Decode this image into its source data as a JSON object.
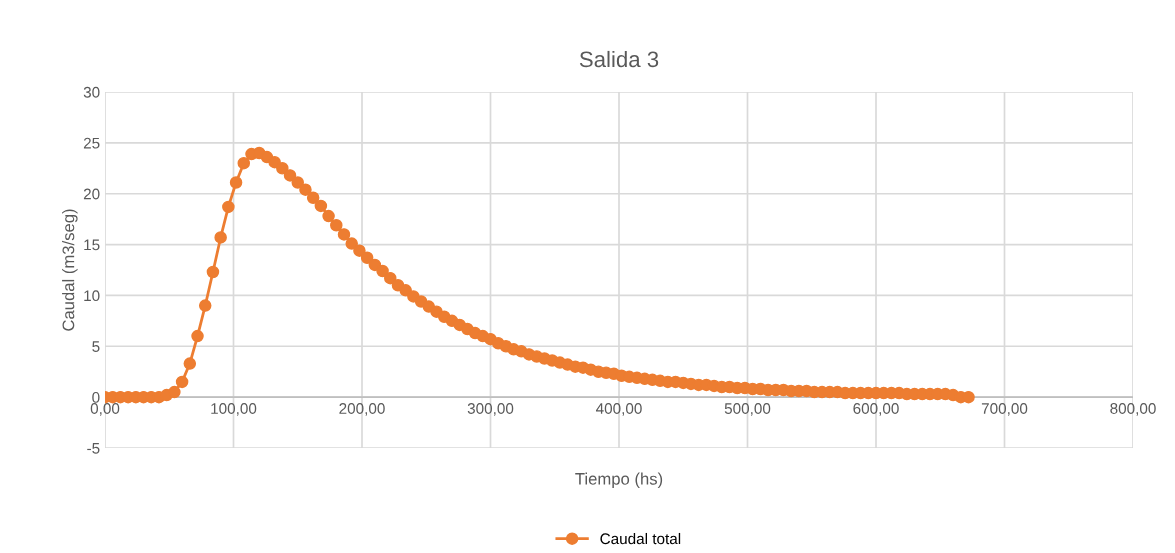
{
  "chart_data": {
    "type": "line",
    "title": "Salida 3",
    "xlabel": "Tiempo (hs)",
    "ylabel": "Caudal (m3/seg)",
    "x": [
      0,
      6,
      12,
      18,
      24,
      30,
      36,
      42,
      48,
      54,
      60,
      66,
      72,
      78,
      84,
      90,
      96,
      102,
      108,
      114,
      120,
      126,
      132,
      138,
      144,
      150,
      156,
      162,
      168,
      174,
      180,
      186,
      192,
      198,
      204,
      210,
      216,
      222,
      228,
      234,
      240,
      246,
      252,
      258,
      264,
      270,
      276,
      282,
      288,
      294,
      300,
      306,
      312,
      318,
      324,
      330,
      336,
      342,
      348,
      354,
      360,
      366,
      372,
      378,
      384,
      390,
      396,
      402,
      408,
      414,
      420,
      426,
      432,
      438,
      444,
      450,
      456,
      462,
      468,
      474,
      480,
      486,
      492,
      498,
      504,
      510,
      516,
      522,
      528,
      534,
      540,
      546,
      552,
      558,
      564,
      570,
      576,
      582,
      588,
      594,
      600,
      606,
      612,
      618,
      624,
      630,
      636,
      642,
      648,
      654,
      660,
      666,
      672
    ],
    "series": [
      {
        "name": "Caudal total",
        "color": "#ed7d31",
        "values": [
          0,
          0,
          0,
          0,
          0,
          0,
          0,
          0,
          0.2,
          0.5,
          1.5,
          3.3,
          6.0,
          9.0,
          12.3,
          15.7,
          18.7,
          21.1,
          23.0,
          23.9,
          24.0,
          23.6,
          23.1,
          22.5,
          21.8,
          21.1,
          20.4,
          19.6,
          18.8,
          17.8,
          16.9,
          16.0,
          15.1,
          14.4,
          13.7,
          13.0,
          12.4,
          11.7,
          11.0,
          10.5,
          9.9,
          9.4,
          8.9,
          8.4,
          7.9,
          7.5,
          7.1,
          6.7,
          6.3,
          6.0,
          5.7,
          5.3,
          5.0,
          4.7,
          4.5,
          4.2,
          4.0,
          3.8,
          3.6,
          3.4,
          3.2,
          3.0,
          2.9,
          2.7,
          2.5,
          2.4,
          2.3,
          2.1,
          2.0,
          1.9,
          1.8,
          1.7,
          1.6,
          1.5,
          1.5,
          1.4,
          1.3,
          1.2,
          1.2,
          1.1,
          1.0,
          1.0,
          0.9,
          0.9,
          0.8,
          0.8,
          0.7,
          0.7,
          0.7,
          0.6,
          0.6,
          0.6,
          0.5,
          0.5,
          0.5,
          0.5,
          0.4,
          0.4,
          0.4,
          0.4,
          0.4,
          0.4,
          0.4,
          0.4,
          0.3,
          0.3,
          0.3,
          0.3,
          0.3,
          0.3,
          0.2,
          0.0,
          0.0
        ]
      }
    ],
    "xlim": [
      0,
      800
    ],
    "ylim": [
      -5,
      30
    ],
    "xticks": [
      {
        "value": 0,
        "label": "0,00"
      },
      {
        "value": 100,
        "label": "100,00"
      },
      {
        "value": 200,
        "label": "200,00"
      },
      {
        "value": 300,
        "label": "300,00"
      },
      {
        "value": 400,
        "label": "400,00"
      },
      {
        "value": 500,
        "label": "500,00"
      },
      {
        "value": 600,
        "label": "600,00"
      },
      {
        "value": 700,
        "label": "700,00"
      },
      {
        "value": 800,
        "label": "800,00"
      }
    ],
    "yticks": [
      -5,
      0,
      5,
      10,
      15,
      20,
      25,
      30
    ],
    "grid": true,
    "legend": "bottom",
    "marker": "circle",
    "line_style": "solid"
  }
}
